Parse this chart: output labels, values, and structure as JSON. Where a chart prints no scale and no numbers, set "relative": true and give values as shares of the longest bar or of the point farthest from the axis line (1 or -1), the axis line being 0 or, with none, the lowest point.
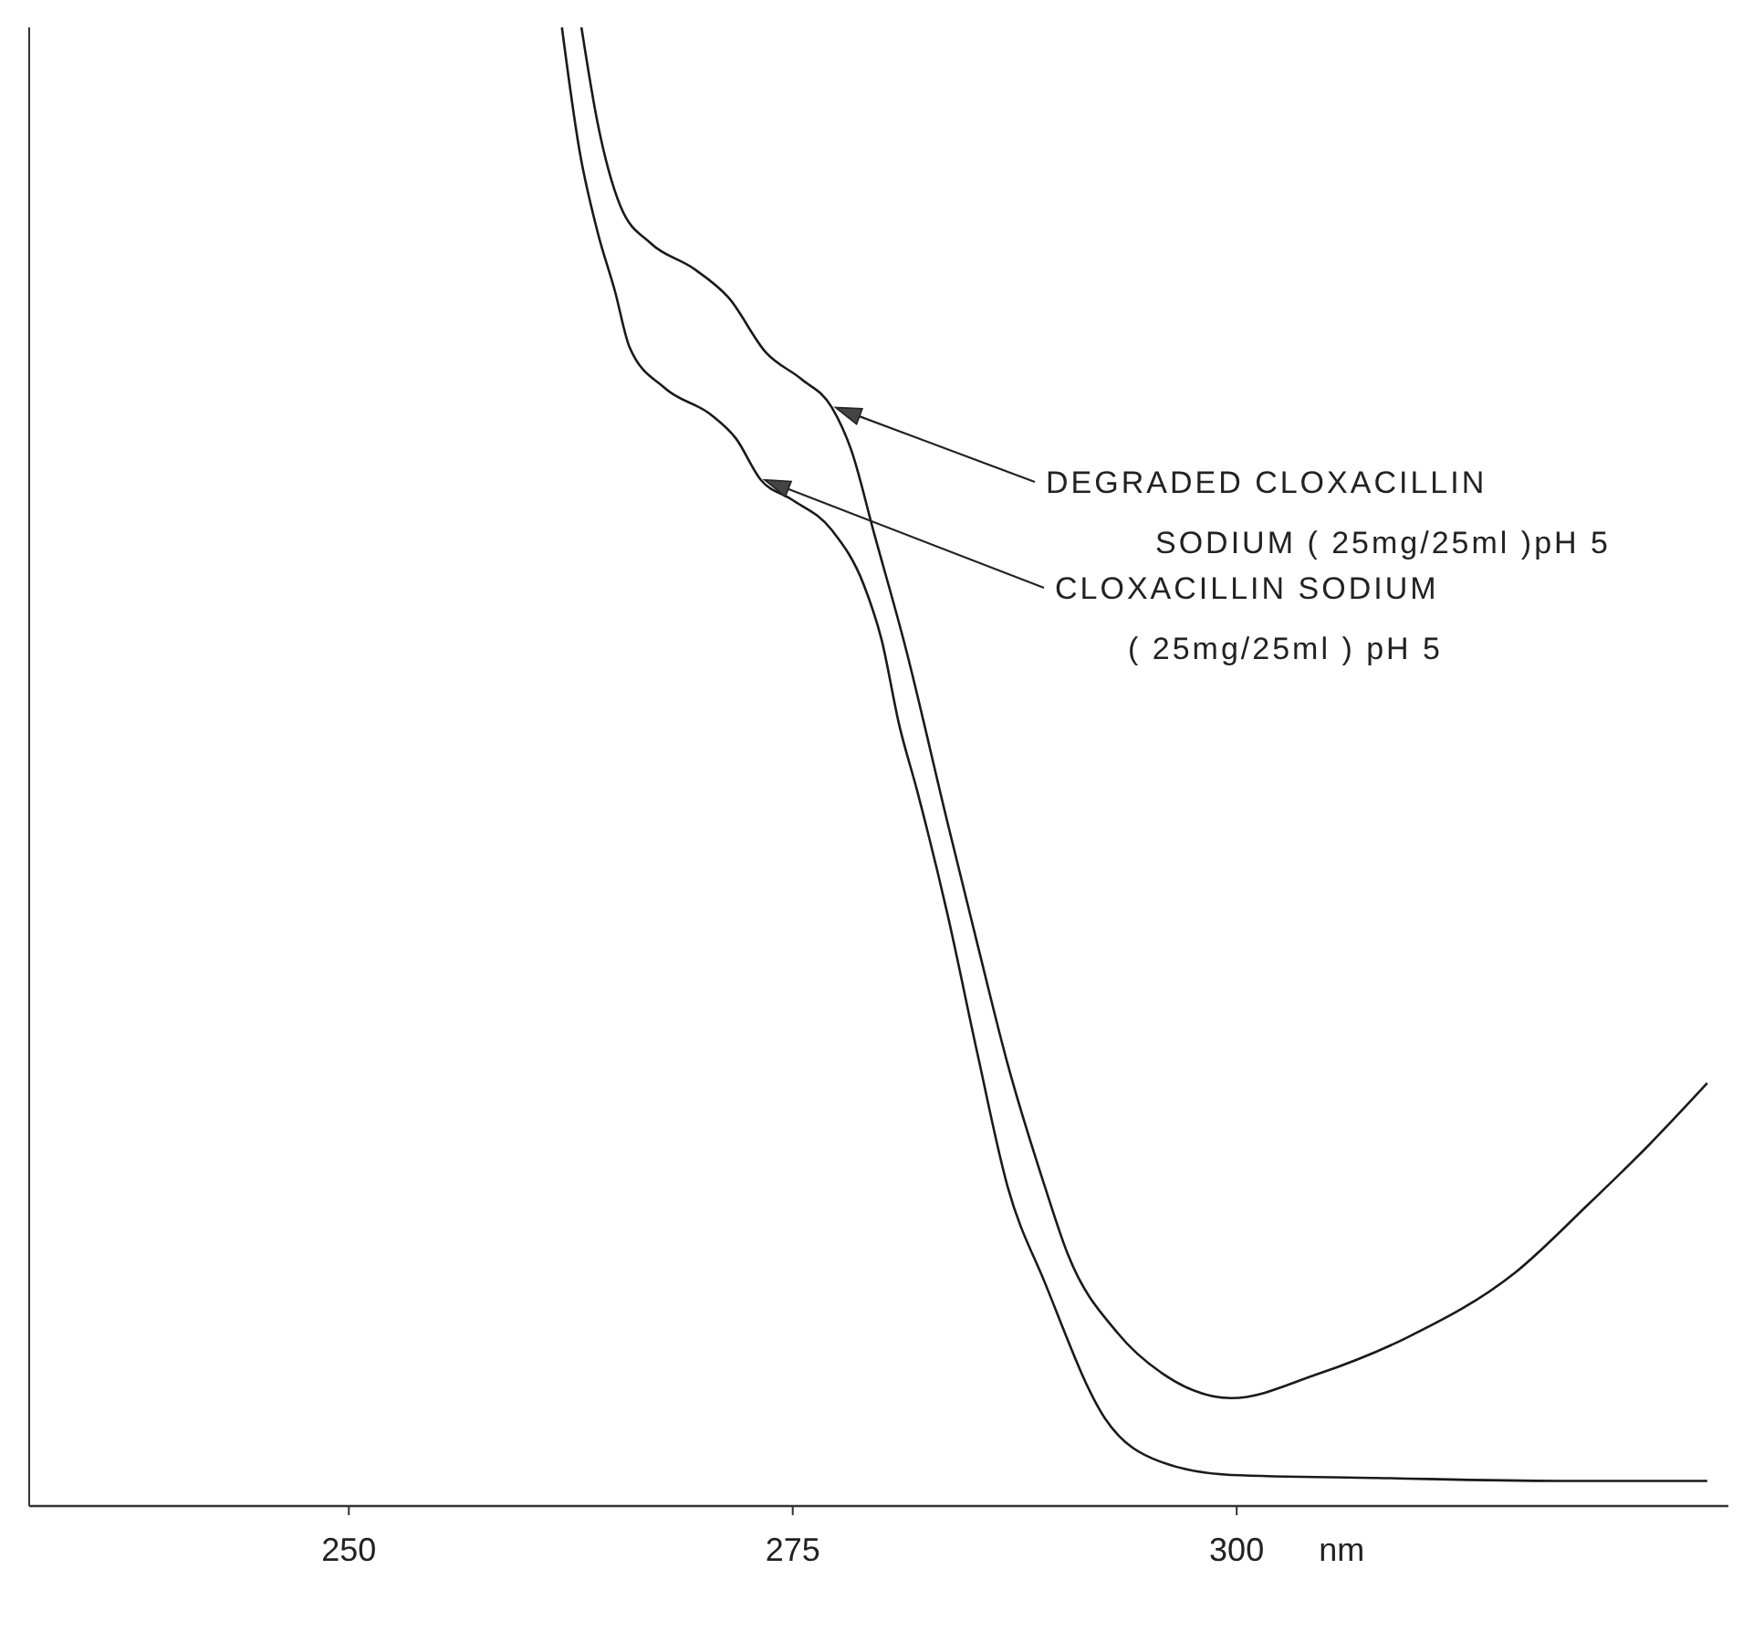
{
  "chart_data": {
    "type": "line",
    "relative": true,
    "xlabel": "nm",
    "xlim": [
      232,
      328
    ],
    "xticks": [
      250,
      275,
      300
    ],
    "grid": false,
    "marker": "none",
    "line_style": "solid",
    "annotations": [
      "DEGRADED CLOXACILLIN\nSODIUM ( 25mg/25ml )pH 5",
      "CLOXACILLIN SODIUM\n( 25mg/25ml ) pH 5"
    ],
    "series": [
      {
        "color": "#1a1a1a",
        "x": [
          263.1,
          264.0,
          265.3,
          267.0,
          269.4,
          271.4,
          273.5,
          275.5,
          277.2,
          278.3,
          279.6,
          281.3,
          283.7,
          285.4,
          287.1,
          289.2,
          290.5,
          293.3,
          295.9,
          299.7,
          304.5,
          309.6,
          315.7,
          319.8,
          323.2,
          326.5
        ],
        "values": [
          1.0,
          0.936,
          0.879,
          0.854,
          0.837,
          0.817,
          0.78,
          0.762,
          0.743,
          0.714,
          0.657,
          0.583,
          0.463,
          0.38,
          0.299,
          0.216,
          0.17,
          0.117,
          0.089,
          0.073,
          0.089,
          0.114,
          0.158,
          0.204,
          0.244,
          0.286
        ]
      },
      {
        "color": "#1a1a1a",
        "x": [
          262.0,
          263.0,
          264.0,
          265.0,
          265.8,
          267.8,
          270.4,
          271.8,
          273.2,
          274.9,
          277.2,
          279.0,
          280.0,
          281.0,
          282.0,
          283.7,
          285.4,
          287.1,
          289.2,
          292.6,
          295.7,
          299.7,
          307.9,
          318.1,
          326.5
        ],
        "values": [
          1.0,
          0.916,
          0.862,
          0.821,
          0.784,
          0.756,
          0.738,
          0.722,
          0.694,
          0.681,
          0.66,
          0.623,
          0.586,
          0.528,
          0.484,
          0.401,
          0.306,
          0.216,
          0.151,
          0.059,
          0.03,
          0.021,
          0.019,
          0.017,
          0.017
        ]
      }
    ]
  }
}
